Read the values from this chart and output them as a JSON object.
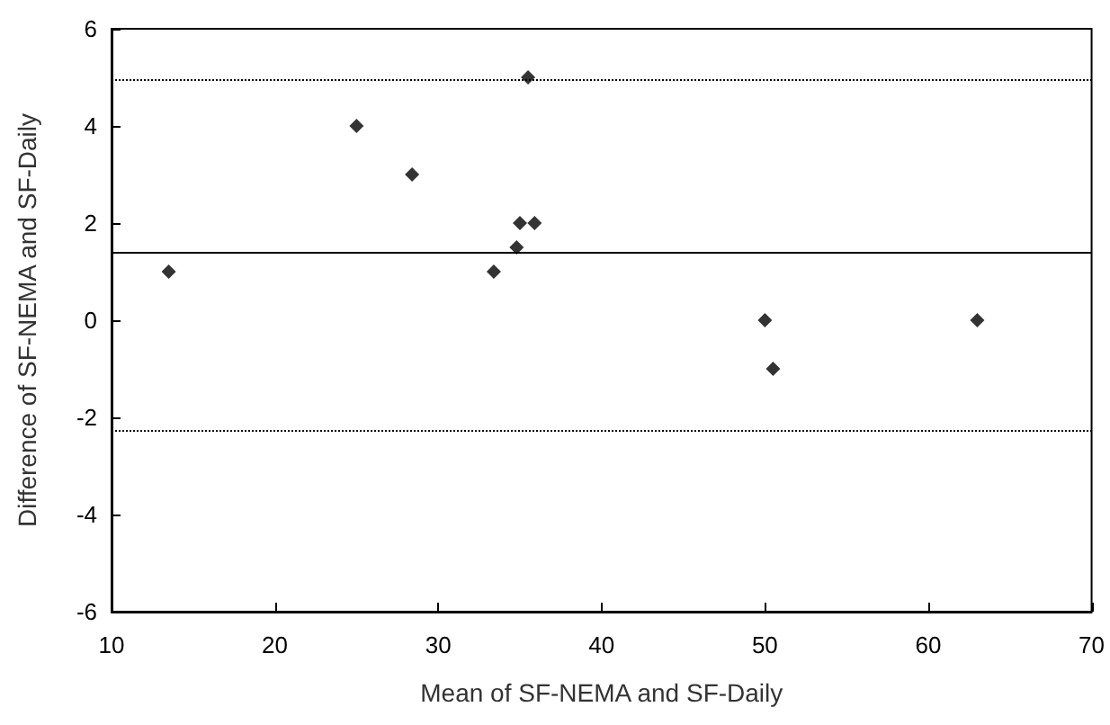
{
  "chart_data": {
    "type": "scatter",
    "xlabel": "Mean of SF-NEMA and SF-Daily",
    "ylabel": "Difference of SF-NEMA and SF-Daily",
    "x": [
      13.5,
      25,
      28.4,
      33.4,
      34.8,
      35,
      35.9,
      35.5,
      50,
      50.5,
      63
    ],
    "series": [
      {
        "color": "#000000",
        "values": [
          1,
          4,
          3,
          1,
          1.5,
          2,
          2,
          5,
          0,
          -1,
          0
        ]
      }
    ],
    "marker": "diamond",
    "grid": false,
    "xlim": [
      10,
      70
    ],
    "xticks": [
      10,
      20,
      30,
      40,
      50,
      60,
      70
    ],
    "ylim": [
      -6,
      6
    ],
    "yticks": [
      -6,
      -4,
      -2,
      0,
      2,
      4,
      6
    ],
    "ref_lines": [
      {
        "axis": "y",
        "value": 1.4,
        "color": "#000000",
        "line_style": "solid"
      },
      {
        "axis": "y",
        "value": 4.95,
        "color": "#000000",
        "line_style": "dotted"
      },
      {
        "axis": "y",
        "value": -2.25,
        "color": "#000000",
        "line_style": "dotted"
      }
    ]
  }
}
